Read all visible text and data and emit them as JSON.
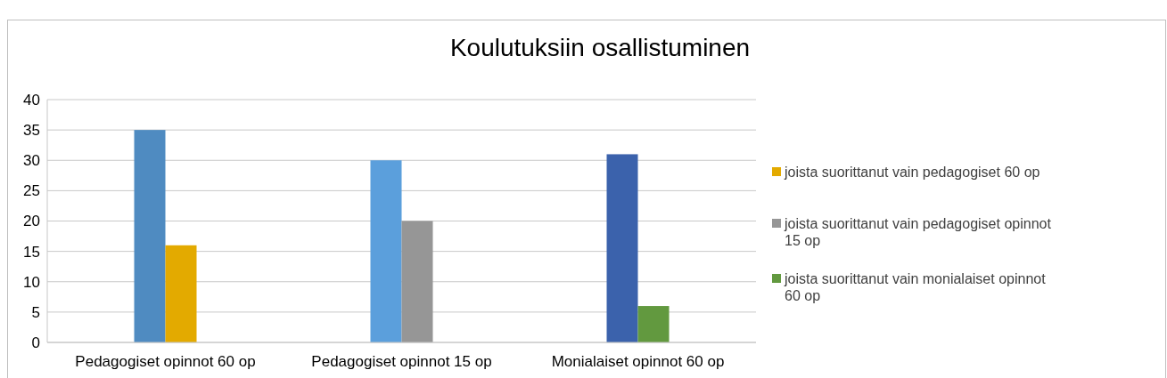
{
  "chart_data": {
    "type": "bar",
    "title": "Koulutuksiin osallistuminen",
    "categories": [
      "Pedagogiset opinnot 60 op",
      "Pedagogiset opinnot 15 op",
      "Monialaiset opinnot 60 op"
    ],
    "series": [
      {
        "colors": [
          "#4f8bc1",
          "#5b9fdc",
          "#3b62ac"
        ],
        "values": [
          35,
          30,
          31
        ]
      },
      {
        "name": "joista suorittanut vain pedagogiset 60 op",
        "color": "#e3aa00",
        "values": [
          16,
          null,
          null
        ]
      },
      {
        "name": "joista suorittanut vain pedagogiset opinnot 15 op",
        "color": "#969696",
        "values": [
          null,
          20,
          null
        ]
      },
      {
        "name": "joista suorittanut vain monialaiset opinnot 60 op",
        "color": "#62993f",
        "values": [
          null,
          null,
          6
        ]
      }
    ],
    "ylim": [
      0,
      40
    ],
    "yticks": [
      0,
      5,
      10,
      15,
      20,
      25,
      30,
      35,
      40
    ],
    "grid": "y",
    "legend": "right"
  }
}
